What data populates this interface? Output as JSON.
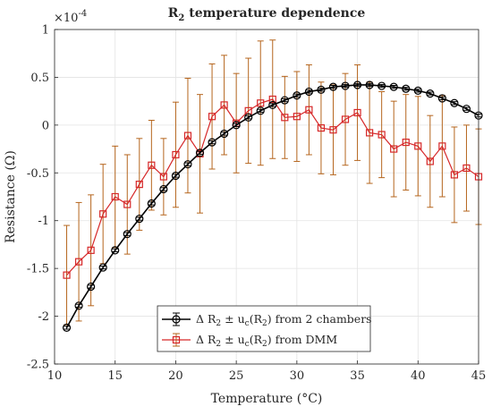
{
  "chart_data": {
    "type": "line",
    "title_main": "R",
    "title_sub": "2",
    "title_rest": " temperature dependence",
    "xlabel": "Temperature (°C)",
    "ylabel": "Resistance (Ω)",
    "y_exponent_label": "×10",
    "y_exponent": "-4",
    "xlim": [
      10,
      45
    ],
    "ylim": [
      -2.5,
      1
    ],
    "xticks": [
      "10",
      "15",
      "20",
      "25",
      "30",
      "35",
      "40",
      "45"
    ],
    "yticks": [
      "-2.5",
      "-2",
      "-1.5",
      "-1",
      "-0.5",
      "0",
      "0.5",
      "1"
    ],
    "grid": true,
    "legend_position": "bottom-center",
    "x": [
      11,
      12,
      13,
      14,
      15,
      16,
      17,
      18,
      19,
      20,
      21,
      22,
      23,
      24,
      25,
      26,
      27,
      28,
      29,
      30,
      31,
      32,
      33,
      34,
      35,
      36,
      37,
      38,
      39,
      40,
      41,
      42,
      43,
      44,
      45
    ],
    "series": [
      {
        "name_prefix": "Δ R",
        "name_sub": "2",
        "name_mid": " ± u",
        "name_sub2": "c",
        "name_suffix": "(R",
        "name_sub3": "2",
        "name_end": ") from 2 chambers",
        "color": "#000000",
        "marker": "circle",
        "values": [
          -2.12,
          -1.89,
          -1.69,
          -1.49,
          -1.31,
          -1.14,
          -0.98,
          -0.82,
          -0.67,
          -0.53,
          -0.41,
          -0.29,
          -0.18,
          -0.09,
          0.0,
          0.08,
          0.15,
          0.21,
          0.26,
          0.31,
          0.35,
          0.37,
          0.4,
          0.41,
          0.42,
          0.42,
          0.41,
          0.4,
          0.38,
          0.36,
          0.33,
          0.28,
          0.23,
          0.17,
          0.1
        ],
        "errors": [
          0.015,
          0.015,
          0.015,
          0.015,
          0.015,
          0.015,
          0.015,
          0.015,
          0.015,
          0.015,
          0.015,
          0.015,
          0.015,
          0.015,
          0.015,
          0.015,
          0.015,
          0.015,
          0.015,
          0.015,
          0.015,
          0.015,
          0.015,
          0.015,
          0.015,
          0.015,
          0.015,
          0.015,
          0.015,
          0.015,
          0.015,
          0.015,
          0.015,
          0.015,
          0.015
        ]
      },
      {
        "name_prefix": "Δ R",
        "name_sub": "2",
        "name_mid": " ± u",
        "name_sub2": "c",
        "name_suffix": "(R",
        "name_sub3": "2",
        "name_end": ") from DMM",
        "color": "#d62728",
        "error_color": "#b5651d",
        "marker": "square",
        "values": [
          -1.57,
          -1.43,
          -1.31,
          -0.93,
          -0.75,
          -0.83,
          -0.62,
          -0.42,
          -0.54,
          -0.31,
          -0.11,
          -0.3,
          0.09,
          0.21,
          0.02,
          0.15,
          0.23,
          0.27,
          0.08,
          0.09,
          0.16,
          -0.03,
          -0.05,
          0.06,
          0.13,
          -0.08,
          -0.1,
          -0.25,
          -0.18,
          -0.22,
          -0.38,
          -0.22,
          -0.52,
          -0.45,
          -0.54
        ],
        "errors": [
          0.52,
          0.62,
          0.58,
          0.52,
          0.53,
          0.52,
          0.48,
          0.47,
          0.4,
          0.55,
          0.6,
          0.62,
          0.55,
          0.52,
          0.52,
          0.55,
          0.65,
          0.62,
          0.43,
          0.47,
          0.47,
          0.48,
          0.47,
          0.48,
          0.5,
          0.53,
          0.45,
          0.5,
          0.5,
          0.52,
          0.48,
          0.53,
          0.5,
          0.45,
          0.5
        ]
      }
    ]
  }
}
